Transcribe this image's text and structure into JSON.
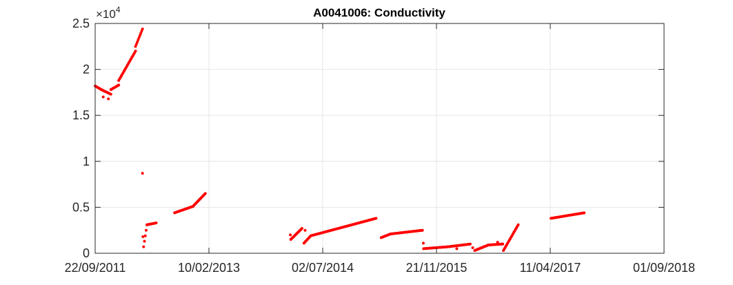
{
  "chart_data": {
    "type": "scatter",
    "title": "A0041006: Conductivity",
    "xlabel": "",
    "ylabel": "",
    "exponent_label": {
      "base": "×10",
      "power": "4"
    },
    "x_ticks": [
      "22/09/2011",
      "10/02/2013",
      "02/07/2014",
      "21/11/2015",
      "11/04/2017",
      "01/09/2018"
    ],
    "y_ticks": [
      "0",
      "0.5",
      "1",
      "1.5",
      "2",
      "2.5"
    ],
    "xlim": [
      "2011-09-22",
      "2018-09-01"
    ],
    "ylim": [
      0,
      25000
    ],
    "grid": true,
    "marker_color": "#ff0000",
    "series": [
      {
        "segments": [
          {
            "from": "2011-09-22",
            "to": "2011-10-20",
            "y0": 18200,
            "y1": 17800
          },
          {
            "from": "2011-10-20",
            "to": "2011-12-01",
            "y0": 17800,
            "y1": 17300
          },
          {
            "from": "2011-12-01",
            "to": "2012-01-05",
            "y0": 17800,
            "y1": 18300
          },
          {
            "from": "2012-01-05",
            "to": "2012-03-20",
            "y0": 18800,
            "y1": 22000
          },
          {
            "from": "2012-03-20",
            "to": "2012-04-20",
            "y0": 22500,
            "y1": 24400
          },
          {
            "from": "2012-04-25",
            "to": "2012-05-10",
            "y0": 700,
            "y1": 3100
          },
          {
            "from": "2012-05-10",
            "to": "2012-06-20",
            "y0": 3100,
            "y1": 3300
          },
          {
            "from": "2012-09-10",
            "to": "2012-12-01",
            "y0": 4400,
            "y1": 5100
          },
          {
            "from": "2012-12-01",
            "to": "2013-01-25",
            "y0": 5100,
            "y1": 6500
          },
          {
            "from": "2014-02-10",
            "to": "2014-04-01",
            "y0": 1500,
            "y1": 2700
          },
          {
            "from": "2014-04-10",
            "to": "2014-05-10",
            "y0": 1100,
            "y1": 1900
          },
          {
            "from": "2014-05-10",
            "to": "2015-02-25",
            "y0": 1900,
            "y1": 3800
          },
          {
            "from": "2015-03-20",
            "to": "2015-05-01",
            "y0": 1700,
            "y1": 2100
          },
          {
            "from": "2015-05-01",
            "to": "2015-09-20",
            "y0": 2100,
            "y1": 2500
          },
          {
            "from": "2015-09-25",
            "to": "2016-01-10",
            "y0": 500,
            "y1": 700
          },
          {
            "from": "2016-01-10",
            "to": "2016-04-20",
            "y0": 700,
            "y1": 1000
          },
          {
            "from": "2016-05-10",
            "to": "2016-07-10",
            "y0": 300,
            "y1": 900
          },
          {
            "from": "2016-07-10",
            "to": "2016-09-10",
            "y0": 900,
            "y1": 1000
          },
          {
            "from": "2016-09-15",
            "to": "2016-11-20",
            "y0": 300,
            "y1": 3100
          },
          {
            "from": "2017-04-15",
            "to": "2017-09-10",
            "y0": 3800,
            "y1": 4400
          }
        ],
        "points": [
          {
            "x": "2011-10-28",
            "y": 17000
          },
          {
            "x": "2011-11-20",
            "y": 16800
          },
          {
            "x": "2012-04-20",
            "y": 8700
          },
          {
            "x": "2012-04-22",
            "y": 1800
          },
          {
            "x": "2014-02-08",
            "y": 2000
          },
          {
            "x": "2014-04-15",
            "y": 2500
          },
          {
            "x": "2015-09-24",
            "y": 1100
          },
          {
            "x": "2016-02-20",
            "y": 500
          },
          {
            "x": "2016-05-01",
            "y": 600
          },
          {
            "x": "2016-08-20",
            "y": 1200
          },
          {
            "x": "2016-09-12",
            "y": 1000
          }
        ]
      }
    ]
  }
}
